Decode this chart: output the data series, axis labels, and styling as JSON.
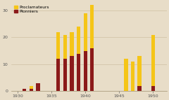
{
  "years": [
    1931,
    1932,
    1933,
    1936,
    1937,
    1938,
    1939,
    1940,
    1941,
    1946,
    1947,
    1948,
    1950
  ],
  "proclamateurs": [
    1,
    2,
    3,
    22,
    21,
    22,
    24,
    29,
    32,
    12,
    11,
    13,
    21
  ],
  "pionniers": [
    1,
    1,
    3,
    12,
    12,
    13,
    14,
    15,
    16,
    0,
    0,
    2,
    2
  ],
  "color_proc": "#f5c518",
  "color_pion": "#8b1a1a",
  "background": "#e8ddc8",
  "grid_color": "#c8b898",
  "legend_proc": "Proclamateurs",
  "legend_pion": "Pionniers",
  "ylim": [
    0,
    33
  ],
  "yticks": [
    0,
    10,
    20,
    30
  ],
  "xticks": [
    1930,
    1935,
    1940,
    1945,
    1950
  ],
  "xlim": [
    1929.0,
    1952.0
  ],
  "bar_width": 0.55
}
